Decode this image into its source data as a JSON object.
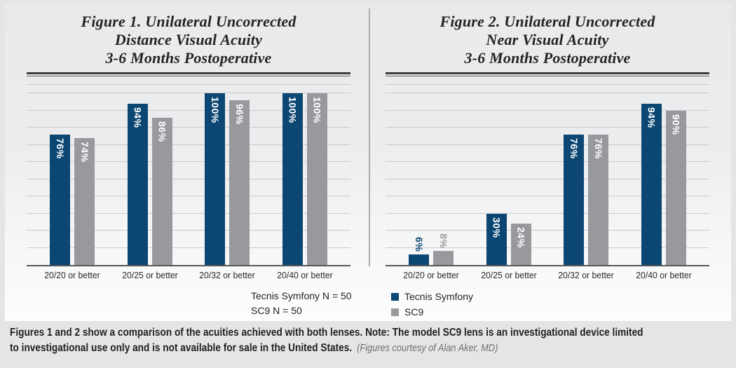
{
  "figure1": {
    "title_lines": [
      "Figure 1. Unilateral Uncorrected",
      "Distance Visual Acuity",
      "3-6 Months Postoperative"
    ],
    "note_lines": [
      "Tecnis Symfony N = 50",
      "SC9 N = 50"
    ]
  },
  "figure2": {
    "title_lines": [
      "Figure 2. Unilateral Uncorrected",
      "Near Visual Acuity",
      "3-6 Months Postoperative"
    ],
    "legend": [
      {
        "label": "Tecnis Symfony",
        "color": "#0c4672"
      },
      {
        "label": "SC9",
        "color": "#97999c"
      }
    ]
  },
  "caption": {
    "bold_line1": "Figures 1 and 2 show a comparison of the acuities achieved with both lenses. Note: The model SC9 lens is an investigational device limited",
    "bold_line2": "to investigational use only and is not available for sale in the United States.",
    "credit": "(Figures courtesy of Alan Aker, MD)"
  },
  "colors": {
    "tecnis_navy": "#0c4672",
    "sc9_gray": "#97999c",
    "gridline": "#c9cacc",
    "axis": "#55575a",
    "panel_top": "#e9eaeb",
    "panel_bottom": "#fdfdfe",
    "page_background": "#e4e5e6",
    "caption_text": "#1f2022",
    "credit_text": "#6f7073"
  },
  "chart_data": [
    {
      "type": "bar",
      "title": "Figure 1. Unilateral Uncorrected Distance Visual Acuity 3-6 Months Postoperative",
      "categories": [
        "20/20 or better",
        "20/25 or better",
        "20/32 or better",
        "20/40 or better"
      ],
      "series": [
        {
          "name": "Tecnis Symfony",
          "color": "#0c4672",
          "values": [
            76,
            94,
            100,
            100
          ]
        },
        {
          "name": "SC9",
          "color": "#97999c",
          "values": [
            74,
            86,
            96,
            100
          ]
        }
      ],
      "value_label_format": "{v}%",
      "ylim": [
        0,
        105
      ],
      "gridline_step": 10,
      "grid": true,
      "legend_position": "none",
      "note": [
        "Tecnis Symfony N = 50",
        "SC9 N = 50"
      ]
    },
    {
      "type": "bar",
      "title": "Figure 2. Unilateral Uncorrected Near Visual Acuity 3-6 Months Postoperative",
      "categories": [
        "20/20 or better",
        "20/25 or better",
        "20/32 or better",
        "20/40 or better"
      ],
      "series": [
        {
          "name": "Tecnis Symfony",
          "color": "#0c4672",
          "values": [
            6,
            30,
            76,
            94
          ]
        },
        {
          "name": "SC9",
          "color": "#97999c",
          "values": [
            8,
            24,
            76,
            90
          ]
        }
      ],
      "value_label_format": "{v}%",
      "ylim": [
        0,
        105
      ],
      "gridline_step": 10,
      "grid": true,
      "legend_position": "bottom-left"
    }
  ]
}
